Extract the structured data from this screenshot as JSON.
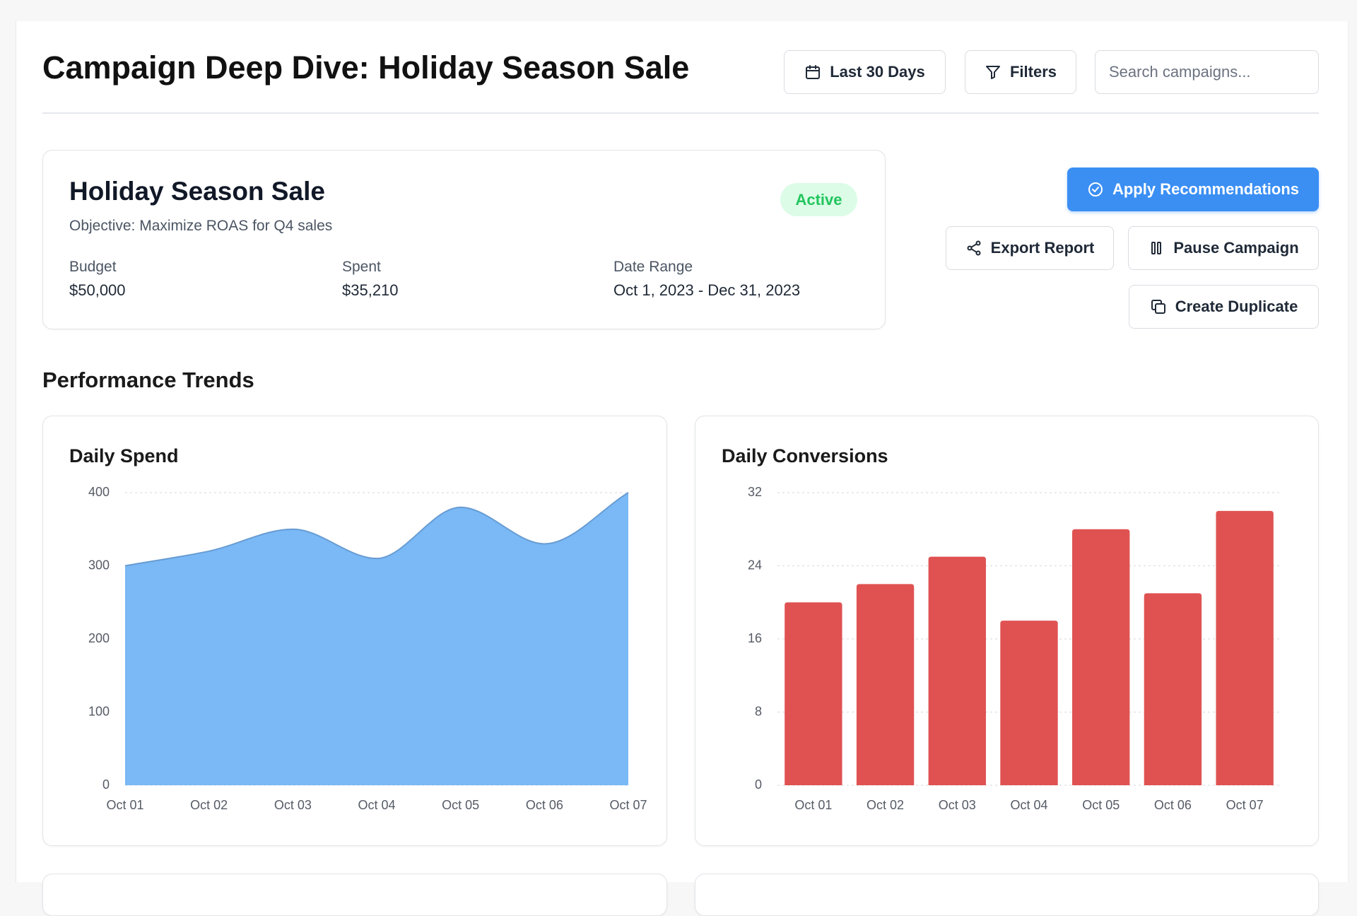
{
  "header": {
    "title": "Campaign Deep Dive: Holiday Season Sale",
    "date_button": "Last 30 Days",
    "filters_button": "Filters",
    "search_placeholder": "Search campaigns..."
  },
  "campaign": {
    "name": "Holiday Season Sale",
    "status": "Active",
    "objective": "Objective: Maximize ROAS for Q4 sales",
    "stats": [
      {
        "label": "Budget",
        "value": "$50,000"
      },
      {
        "label": "Spent",
        "value": "$35,210"
      },
      {
        "label": "Date Range",
        "value": "Oct 1, 2023 - Dec 31, 2023"
      }
    ]
  },
  "actions": [
    "Apply Recommendations",
    "Export Report",
    "Pause Campaign",
    "Create Duplicate"
  ],
  "section_title": "Performance Trends",
  "chart_data": [
    {
      "type": "area",
      "title": "Daily Spend",
      "categories": [
        "Oct 01",
        "Oct 02",
        "Oct 03",
        "Oct 04",
        "Oct 05",
        "Oct 06",
        "Oct 07"
      ],
      "values": [
        300,
        320,
        350,
        310,
        380,
        330,
        400
      ],
      "color": "#7ab8f6",
      "ylim": [
        0,
        400
      ],
      "yticks": [
        0,
        100,
        200,
        300,
        400
      ],
      "grid": true
    },
    {
      "type": "bar",
      "title": "Daily Conversions",
      "categories": [
        "Oct 01",
        "Oct 02",
        "Oct 03",
        "Oct 04",
        "Oct 05",
        "Oct 06",
        "Oct 07"
      ],
      "values": [
        20,
        22,
        25,
        18,
        28,
        21,
        30
      ],
      "color": "#e05252",
      "ylim": [
        0,
        32
      ],
      "yticks": [
        0,
        8,
        16,
        24,
        32
      ],
      "grid": true
    }
  ]
}
